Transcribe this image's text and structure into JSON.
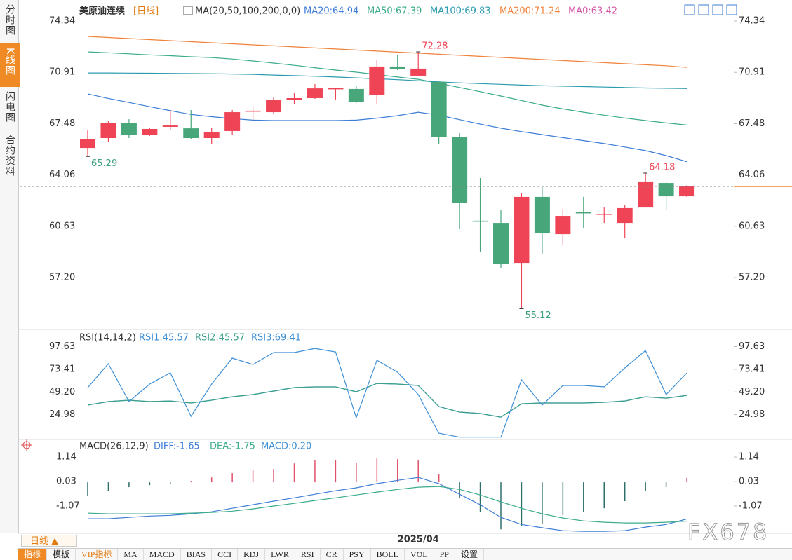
{
  "sidebar": [
    "分时图",
    "K线图",
    "闪电图",
    "合约资料"
  ],
  "toolbar": {
    "symbol": "美原油连续",
    "period": "[日线]"
  },
  "chart_data": [
    {
      "type": "candlestick",
      "title": "MA(20,50,100,200,0,0)",
      "categories": [
        null,
        null,
        null,
        null,
        null,
        null,
        null,
        null,
        null,
        null,
        null,
        null,
        null,
        null,
        null,
        null,
        "2025/04",
        null,
        null,
        null,
        null,
        null,
        null,
        null,
        null,
        null,
        null,
        null,
        null,
        null
      ],
      "open": [
        65.86,
        66.52,
        67.55,
        66.71,
        67.27,
        67.17,
        66.52,
        66.99,
        68.34,
        68.25,
        69.05,
        69.19,
        69.84,
        69.8,
        69.38,
        71.3,
        70.69,
        70.27,
        66.57,
        61.0,
        60.85,
        58.18,
        62.59,
        60.1,
        61.56,
        61.44,
        60.85,
        61.88,
        63.52,
        62.63
      ],
      "high": [
        67.03,
        67.69,
        67.78,
        67.17,
        68.39,
        68.39,
        67.22,
        68.39,
        68.63,
        69.24,
        69.56,
        70.13,
        69.86,
        69.98,
        71.72,
        72.09,
        72.28,
        70.31,
        66.85,
        63.85,
        61.7,
        62.87,
        63.24,
        61.79,
        62.59,
        61.88,
        62.07,
        64.18,
        63.62,
        63.38
      ],
      "low": [
        65.29,
        66.24,
        66.52,
        66.66,
        67.08,
        66.47,
        66.1,
        66.71,
        67.69,
        68.11,
        68.81,
        69.14,
        69.1,
        68.86,
        68.81,
        71.06,
        70.69,
        66.14,
        60.43,
        58.89,
        57.81,
        55.12,
        58.75,
        59.35,
        60.53,
        60.85,
        59.82,
        61.88,
        61.7,
        62.59
      ],
      "close": [
        66.47,
        67.55,
        66.71,
        67.13,
        67.36,
        66.52,
        66.94,
        68.25,
        68.35,
        69.05,
        69.19,
        69.84,
        69.85,
        68.95,
        71.3,
        71.11,
        71.16,
        66.57,
        62.21,
        60.95,
        58.09,
        62.59,
        60.15,
        61.32,
        61.51,
        61.46,
        61.84,
        63.62,
        62.63,
        63.29
      ],
      "up_color": "#ee4456",
      "down_color": "#47a67a",
      "series": [
        {
          "name": "MA20:64.94",
          "color": "#3d7dd6",
          "values": [
            69.47,
            69.17,
            68.9,
            68.62,
            68.35,
            68.1,
            67.95,
            67.82,
            67.72,
            67.69,
            67.69,
            67.69,
            67.69,
            67.72,
            67.85,
            68.02,
            68.25,
            68.05,
            67.75,
            67.45,
            67.18,
            66.95,
            66.75,
            66.55,
            66.35,
            66.15,
            65.92,
            65.68,
            65.35,
            64.94
          ]
        },
        {
          "name": "MA50:67.39",
          "color": "#3aab8c",
          "values": [
            72.28,
            72.22,
            72.15,
            72.08,
            72.02,
            71.95,
            71.9,
            71.8,
            71.67,
            71.53,
            71.38,
            71.22,
            71.06,
            70.92,
            70.76,
            70.6,
            70.45,
            70.18,
            69.9,
            69.62,
            69.33,
            69.03,
            68.72,
            68.47,
            68.25,
            68.05,
            67.86,
            67.69,
            67.53,
            67.39
          ]
        },
        {
          "name": "MA100:69.83",
          "color": "#2b9bb0",
          "values": [
            70.87,
            70.87,
            70.86,
            70.85,
            70.84,
            70.83,
            70.82,
            70.8,
            70.77,
            70.73,
            70.69,
            70.65,
            70.6,
            70.54,
            70.48,
            70.42,
            70.35,
            70.27,
            70.21,
            70.16,
            70.11,
            70.06,
            70.02,
            69.99,
            69.96,
            69.93,
            69.9,
            69.87,
            69.85,
            69.83
          ]
        },
        {
          "name": "MA200:71.24",
          "color": "#f0823a",
          "values": [
            73.31,
            73.24,
            73.17,
            73.1,
            73.03,
            72.96,
            72.89,
            72.82,
            72.75,
            72.68,
            72.61,
            72.54,
            72.47,
            72.4,
            72.33,
            72.26,
            72.19,
            72.12,
            72.05,
            71.98,
            71.91,
            71.84,
            71.77,
            71.7,
            71.63,
            71.56,
            71.49,
            71.42,
            71.35,
            71.24
          ]
        }
      ],
      "legend_extra": {
        "name": "MA0:63.42",
        "color": "#d45aa8"
      },
      "annotations": [
        72.28,
        65.29,
        55.12,
        64.18
      ],
      "ylim": [
        53.83,
        75.37
      ],
      "yticks": [
        74.34,
        70.91,
        67.48,
        64.06,
        60.63,
        {
          "value": 57.2,
          "label": "57.20"
        }
      ]
    },
    {
      "type": "line",
      "title": "RSI(14,14,2)",
      "series": [
        {
          "name": "RSI1:45.57",
          "color": "#3d8fd6",
          "values": [
            35.2,
            38.9,
            40.4,
            38.9,
            39.6,
            37.4,
            40.4,
            44.1,
            46.4,
            50.1,
            53.9,
            54.6,
            54.6,
            49.4,
            58.3,
            57.6,
            56.1,
            33.7,
            27.7,
            26.2,
            22.4,
            36.6,
            37.4,
            37.4,
            37.4,
            38.2,
            39.6,
            44.1,
            42.6,
            45.57
          ]
        },
        {
          "name": "RSI2:45.57",
          "color": "#3aa08a",
          "values": [
            35.2,
            38.9,
            40.4,
            38.9,
            39.6,
            37.4,
            40.4,
            44.1,
            46.4,
            50.1,
            53.9,
            54.6,
            54.6,
            49.4,
            58.3,
            57.6,
            56.1,
            33.7,
            27.7,
            26.2,
            22.4,
            36.6,
            37.4,
            37.4,
            37.4,
            38.2,
            39.6,
            44.1,
            42.6,
            45.57
          ]
        },
        {
          "name": "RSI3:69.41",
          "color": "#3d8fd6",
          "values": [
            53.9,
            79.3,
            38.9,
            57.6,
            69.6,
            23.2,
            57.6,
            85.3,
            78.5,
            91.3,
            91.3,
            95.7,
            92.0,
            21.7,
            83.0,
            70.3,
            46.4,
            5.2,
            1.0,
            1.0,
            1.0,
            62.1,
            35.2,
            56.1,
            56.1,
            54.6,
            74.8,
            93.5,
            46.4,
            69.41
          ]
        }
      ],
      "ylim": [
        0,
        110
      ],
      "yticks": [
        97.63,
        73.41,
        {
          "value": 49.2,
          "label": "49.20"
        },
        24.98
      ]
    },
    {
      "type": "macd",
      "title": "MACD(26,12,9)",
      "series": [
        {
          "name": "DIFF:-1.65",
          "color": "#3d7dd6",
          "values": [
            -1.64,
            -1.64,
            -1.58,
            -1.52,
            -1.49,
            -1.42,
            -1.33,
            -1.17,
            -1.01,
            -0.85,
            -0.7,
            -0.54,
            -0.38,
            -0.25,
            -0.06,
            0.09,
            0.22,
            -0.06,
            -0.54,
            -1.01,
            -1.58,
            -1.9,
            -2.05,
            -2.18,
            -2.21,
            -2.21,
            -2.18,
            -2.02,
            -1.9,
            -1.65
          ]
        },
        {
          "name": "DEA:-1.75",
          "color": "#3aab8c",
          "values": [
            -1.39,
            -1.42,
            -1.42,
            -1.42,
            -1.42,
            -1.39,
            -1.36,
            -1.3,
            -1.2,
            -1.07,
            -0.95,
            -0.82,
            -0.7,
            -0.57,
            -0.44,
            -0.32,
            -0.22,
            -0.19,
            -0.32,
            -0.57,
            -0.88,
            -1.17,
            -1.42,
            -1.61,
            -1.74,
            -1.8,
            -1.83,
            -1.83,
            -1.8,
            -1.75
          ]
        }
      ],
      "bars": {
        "name": "MACD:0.20",
        "color": "#3d8fd6",
        "up_color": "#e0506a",
        "down_color": "#2f6f6a",
        "values": [
          -0.63,
          -0.38,
          -0.22,
          -0.13,
          -0.06,
          0.06,
          0.22,
          0.41,
          0.54,
          0.6,
          0.85,
          0.98,
          1.01,
          0.88,
          1.07,
          1.04,
          0.98,
          0.38,
          -0.69,
          -1.33,
          -2.12,
          -1.96,
          -1.89,
          -1.48,
          -1.33,
          -1.17,
          -0.85,
          -0.38,
          -0.22,
          0.2
        ]
      },
      "ylim": [
        -2.27,
        1.52
      ],
      "yticks": [
        1.14,
        0.03,
        -1.07
      ]
    }
  ],
  "period_button": "日线 ▲",
  "tabs": [
    "指标",
    "模板",
    "VIP指标",
    "MA",
    "MACD",
    "BIAS",
    "CCI",
    "KDJ",
    "LWR",
    "RSI",
    "CR",
    "PSY",
    "BOLL",
    "VOL",
    "PP",
    "设置"
  ],
  "watermark": "FX678"
}
